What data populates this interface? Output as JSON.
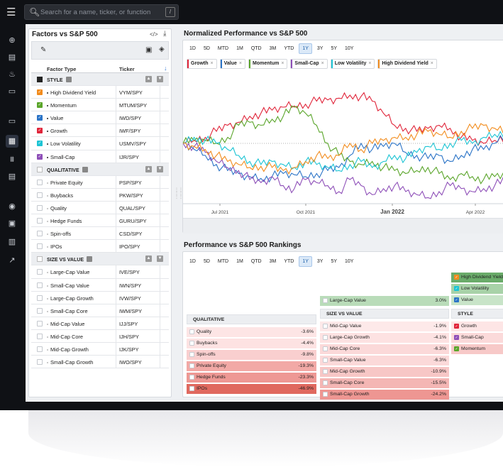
{
  "search": {
    "placeholder": "Search for a name, ticker, or function",
    "shortcut": "/"
  },
  "sidebar": {
    "icons": [
      "globe-icon",
      "news-icon",
      "fire-icon",
      "cards-icon",
      "monitor-icon",
      "grid-icon",
      "chart-icon",
      "document-icon",
      "camera-icon",
      "report-icon",
      "calculator-icon",
      "trend-icon"
    ]
  },
  "factors": {
    "title": "Factors vs S&P 500",
    "columns": {
      "type": "Factor Type",
      "ticker": "Ticker"
    },
    "groups": [
      {
        "label": "STYLE",
        "selected": true,
        "items": [
          {
            "name": "High Dividend Yield",
            "ticker": "VYM/SPY",
            "color": "#f28c1d",
            "checked": true
          },
          {
            "name": "Momentum",
            "ticker": "MTUM/SPY",
            "color": "#5aa52a",
            "checked": true
          },
          {
            "name": "Value",
            "ticker": "IWD/SPY",
            "color": "#2b74c7",
            "checked": true
          },
          {
            "name": "Growth",
            "ticker": "IWF/SPY",
            "color": "#e0253a",
            "checked": true
          },
          {
            "name": "Low Volatility",
            "ticker": "USMV/SPY",
            "color": "#1cc4d4",
            "checked": true
          },
          {
            "name": "Small-Cap",
            "ticker": "IJR/SPY",
            "color": "#8e4fb8",
            "checked": true
          }
        ]
      },
      {
        "label": "QUALITATIVE",
        "selected": false,
        "items": [
          {
            "name": "Private Equity",
            "ticker": "PSP/SPY",
            "color": "#b88a5a",
            "checked": false
          },
          {
            "name": "Buybacks",
            "ticker": "PKW/SPY",
            "color": "#4a6fa0",
            "checked": false
          },
          {
            "name": "Quality",
            "ticker": "QUAL/SPY",
            "color": "#6aa0c0",
            "checked": false
          },
          {
            "name": "Hedge Funds",
            "ticker": "GURU/SPY",
            "color": "#a0a0a0",
            "checked": false
          },
          {
            "name": "Spin-offs",
            "ticker": "CSD/SPY",
            "color": "#c8a040",
            "checked": false
          },
          {
            "name": "IPOs",
            "ticker": "IPO/SPY",
            "color": "#d070a0",
            "checked": false
          }
        ]
      },
      {
        "label": "SIZE VS VALUE",
        "selected": false,
        "items": [
          {
            "name": "Large-Cap Value",
            "ticker": "IVE/SPY",
            "color": "#2e7d3a",
            "checked": false
          },
          {
            "name": "Small-Cap Value",
            "ticker": "IWN/SPY",
            "color": "#1f8a70",
            "checked": false
          },
          {
            "name": "Large-Cap Growth",
            "ticker": "IVW/SPY",
            "color": "#7a9ad0",
            "checked": false
          },
          {
            "name": "Small-Cap Core",
            "ticker": "IWM/SPY",
            "color": "#3a5a80",
            "checked": false
          },
          {
            "name": "Mid-Cap Value",
            "ticker": "IJJ/SPY",
            "color": "#805030",
            "checked": false
          },
          {
            "name": "Mid-Cap Core",
            "ticker": "IJH/SPY",
            "color": "#30a060",
            "checked": false
          },
          {
            "name": "Mid-Cap Growth",
            "ticker": "IJK/SPY",
            "color": "#a05080",
            "checked": false
          },
          {
            "name": "Small-Cap Growth",
            "ticker": "IWO/SPY",
            "color": "#2e9a5a",
            "checked": false
          }
        ]
      }
    ]
  },
  "performance": {
    "title": "Normalized Performance vs S&P 500",
    "ranges": [
      "1D",
      "5D",
      "MTD",
      "1M",
      "QTD",
      "3M",
      "YTD",
      "1Y",
      "3Y",
      "5Y",
      "10Y"
    ],
    "active_range": "1Y",
    "chips": [
      {
        "name": "Growth",
        "color": "#e0253a"
      },
      {
        "name": "Value",
        "color": "#2b74c7"
      },
      {
        "name": "Momentum",
        "color": "#5aa52a"
      },
      {
        "name": "Small-Cap",
        "color": "#8e4fb8"
      },
      {
        "name": "Low Volatility",
        "color": "#1cc4d4"
      },
      {
        "name": "High Dividend Yield",
        "color": "#f28c1d"
      }
    ]
  },
  "chart_data": {
    "type": "line",
    "x_labels": [
      "Jul 2021",
      "Oct 2021",
      "Jan 2022",
      "Apr 2022"
    ],
    "x_label_bold": "Jan 2022",
    "baseline": 0,
    "ylim": [
      -1,
      1
    ],
    "series": [
      {
        "name": "Growth",
        "color": "#e0253a",
        "values": [
          0.0,
          0.05,
          0.1,
          0.2,
          0.3,
          0.35,
          0.45,
          0.5,
          0.55,
          0.6,
          0.62,
          0.65,
          0.7,
          0.72,
          0.75,
          0.8,
          0.78,
          0.7,
          0.5,
          0.3,
          0.25,
          0.2,
          0.25,
          0.3,
          0.25,
          0.1,
          0.05,
          0.0,
          0.05,
          0.1
        ]
      },
      {
        "name": "Value",
        "color": "#2b74c7",
        "values": [
          0.0,
          -0.1,
          -0.2,
          -0.35,
          -0.45,
          -0.5,
          -0.55,
          -0.58,
          -0.55,
          -0.5,
          -0.52,
          -0.55,
          -0.5,
          -0.45,
          -0.4,
          -0.2,
          0.0,
          -0.1,
          -0.05,
          0.0,
          -0.15,
          -0.2,
          -0.25,
          -0.2,
          -0.3,
          -0.2,
          -0.1,
          -0.1,
          0.0,
          0.1
        ]
      },
      {
        "name": "Momentum",
        "color": "#5aa52a",
        "values": [
          0.0,
          0.05,
          0.05,
          0.0,
          0.1,
          0.3,
          0.35,
          0.3,
          0.4,
          0.45,
          0.6,
          0.5,
          0.3,
          0.0,
          -0.2,
          -0.3,
          -0.35,
          -0.3,
          -0.4,
          -0.45,
          -0.5,
          -0.45,
          -0.4,
          -0.5,
          -0.6,
          -0.5,
          -0.55,
          -0.6,
          -0.55,
          -0.5
        ]
      },
      {
        "name": "Small-Cap",
        "color": "#8e4fb8",
        "values": [
          0.0,
          -0.05,
          -0.15,
          -0.3,
          -0.4,
          -0.45,
          -0.6,
          -0.65,
          -0.55,
          -0.7,
          -0.75,
          -0.6,
          -0.65,
          -0.7,
          -0.8,
          -0.6,
          -0.7,
          -0.85,
          -0.75,
          -0.7,
          -0.8,
          -0.85,
          -0.9,
          -0.8,
          -0.7,
          -0.75,
          -0.8,
          -0.75,
          -0.7,
          -0.6
        ]
      },
      {
        "name": "Low Volatility",
        "color": "#1cc4d4",
        "values": [
          0.0,
          0.1,
          0.05,
          0.0,
          -0.1,
          -0.2,
          -0.3,
          -0.35,
          -0.3,
          -0.35,
          -0.4,
          -0.3,
          -0.35,
          -0.4,
          -0.45,
          -0.35,
          -0.3,
          -0.4,
          -0.3,
          -0.2,
          -0.25,
          -0.15,
          -0.05,
          -0.1,
          0.0,
          0.05,
          0.0,
          0.1,
          0.15,
          0.2
        ]
      },
      {
        "name": "High Dividend Yield",
        "color": "#f28c1d",
        "values": [
          0.0,
          -0.05,
          -0.1,
          -0.2,
          -0.3,
          -0.35,
          -0.4,
          -0.38,
          -0.4,
          -0.45,
          -0.4,
          -0.3,
          -0.2,
          -0.25,
          -0.2,
          0.0,
          -0.1,
          0.0,
          0.05,
          0.1,
          0.1,
          0.15,
          0.2,
          0.15,
          0.1,
          0.2,
          0.25,
          0.3,
          0.25,
          0.2
        ]
      }
    ]
  },
  "rankings": {
    "title": "Performance vs S&P 500 Rankings",
    "ranges": [
      "1D",
      "5D",
      "MTD",
      "1M",
      "QTD",
      "3M",
      "YTD",
      "1Y",
      "3Y",
      "5Y",
      "10Y"
    ],
    "active_range": "1Y",
    "qualitative": {
      "header": "QUALITATIVE",
      "items": [
        {
          "name": "Quality",
          "value": "-3.6%",
          "bg": "#fde5e5"
        },
        {
          "name": "Buybacks",
          "value": "-4.4%",
          "bg": "#fde2e2"
        },
        {
          "name": "Spin-offs",
          "value": "-9.8%",
          "bg": "#f9cfcf"
        },
        {
          "name": "Private Equity",
          "value": "-19.3%",
          "bg": "#f2a9a6"
        },
        {
          "name": "Hedge Funds",
          "value": "-23.3%",
          "bg": "#ee9894"
        },
        {
          "name": "IPOs",
          "value": "-46.9%",
          "bg": "#e0695f"
        }
      ]
    },
    "size_vs_value": {
      "header": "SIZE VS VALUE",
      "top": {
        "name": "Large-Cap Value",
        "value": "3.0%",
        "bg": "#b9dcb9"
      },
      "items": [
        {
          "name": "Mid-Cap Value",
          "value": "-1.9%",
          "bg": "#fde9e9"
        },
        {
          "name": "Large-Cap Growth",
          "value": "-4.1%",
          "bg": "#fde2e2"
        },
        {
          "name": "Mid-Cap Core",
          "value": "-6.3%",
          "bg": "#fbd9d9"
        },
        {
          "name": "Small-Cap Value",
          "value": "-6.3%",
          "bg": "#fbd9d9"
        },
        {
          "name": "Mid-Cap Growth",
          "value": "-10.9%",
          "bg": "#f7c7c6"
        },
        {
          "name": "Small-Cap Core",
          "value": "-15.5%",
          "bg": "#f4b6b4"
        },
        {
          "name": "Small-Cap Growth",
          "value": "-24.2%",
          "bg": "#ee9692"
        }
      ]
    },
    "style": {
      "header": "STYLE",
      "top": [
        {
          "name": "High Dividend Yield",
          "bg": "#6aac6a",
          "color": "#f28c1d"
        },
        {
          "name": "Low Volatility",
          "bg": "#a8d2a8",
          "color": "#1cc4d4"
        },
        {
          "name": "Value",
          "bg": "#c8e4c8",
          "color": "#2b74c7"
        }
      ],
      "items": [
        {
          "name": "Growth",
          "bg": "#fde5e5",
          "color": "#e0253a"
        },
        {
          "name": "Small-Cap",
          "bg": "#fbdada",
          "color": "#8e4fb8"
        },
        {
          "name": "Momentum",
          "bg": "#f7c9c8",
          "color": "#5aa52a"
        }
      ]
    }
  }
}
